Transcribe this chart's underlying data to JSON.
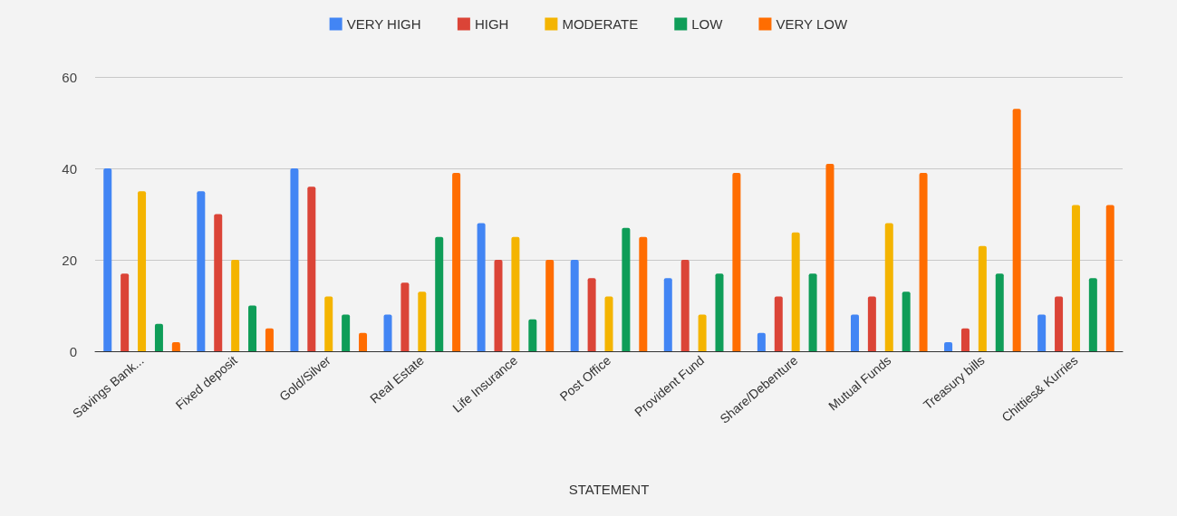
{
  "chart_data": {
    "type": "bar",
    "xlabel": "STATEMENT",
    "categories": [
      "Savings Bank...",
      "Fixed deposit",
      "Gold/Silver",
      "Real Estate",
      "Life Insurance",
      "Post Office",
      "Provident Fund",
      "Share/Debenture",
      "Mutual Funds",
      "Treasury bills",
      "Chitties& Kurries"
    ],
    "series": [
      {
        "name": "VERY HIGH",
        "color": "#4285f4",
        "values": [
          40,
          35,
          40,
          8,
          28,
          20,
          16,
          4,
          8,
          2,
          8
        ]
      },
      {
        "name": "HIGH",
        "color": "#db4437",
        "values": [
          17,
          30,
          36,
          15,
          20,
          16,
          20,
          12,
          12,
          5,
          12
        ]
      },
      {
        "name": "MODERATE",
        "color": "#f4b400",
        "values": [
          35,
          20,
          12,
          13,
          25,
          12,
          8,
          26,
          28,
          23,
          32
        ]
      },
      {
        "name": "LOW",
        "color": "#0f9d58",
        "values": [
          6,
          10,
          8,
          25,
          7,
          27,
          17,
          17,
          13,
          17,
          16
        ]
      },
      {
        "name": "VERY LOW",
        "color": "#ff6d01",
        "values": [
          2,
          5,
          4,
          39,
          20,
          25,
          39,
          41,
          39,
          53,
          32
        ]
      }
    ],
    "ylim": [
      0,
      60
    ],
    "yticks": [
      0,
      20,
      40,
      60
    ],
    "grid": "y",
    "legend": "top"
  }
}
